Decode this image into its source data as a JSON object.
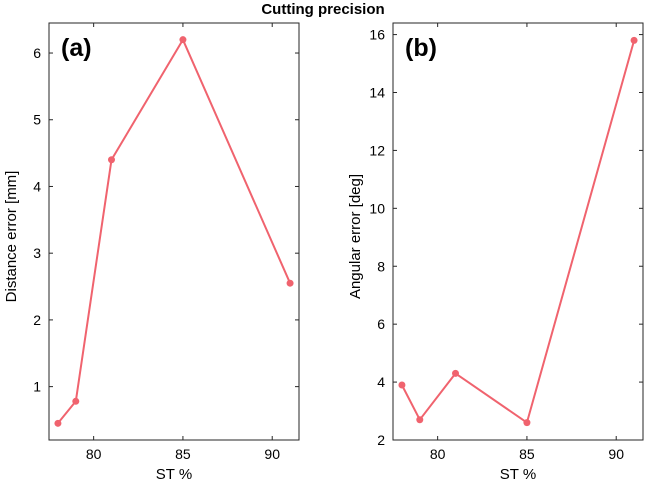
{
  "title": "Cutting precision",
  "chart_data": [
    {
      "type": "line",
      "panel_label": "(a)",
      "xlabel": "ST %",
      "ylabel": "Distance error [mm]",
      "xlim": [
        77.5,
        91.5
      ],
      "ylim": [
        0.2,
        6.45
      ],
      "xticks": [
        80,
        85,
        90
      ],
      "yticks": [
        1,
        2,
        3,
        4,
        5,
        6
      ],
      "color": "#f0636e",
      "x": [
        78,
        79,
        81,
        85,
        91
      ],
      "y": [
        0.45,
        0.78,
        4.4,
        6.2,
        2.55
      ]
    },
    {
      "type": "line",
      "panel_label": "(b)",
      "xlabel": "ST %",
      "ylabel": "Angular error [deg]",
      "xlim": [
        77.5,
        91.5
      ],
      "ylim": [
        2,
        16.4
      ],
      "xticks": [
        80,
        85,
        90
      ],
      "yticks": [
        2,
        4,
        6,
        8,
        10,
        12,
        14,
        16
      ],
      "color": "#f0636e",
      "x": [
        78,
        79,
        81,
        85,
        91
      ],
      "y": [
        3.9,
        2.7,
        4.3,
        2.6,
        15.8
      ]
    }
  ]
}
